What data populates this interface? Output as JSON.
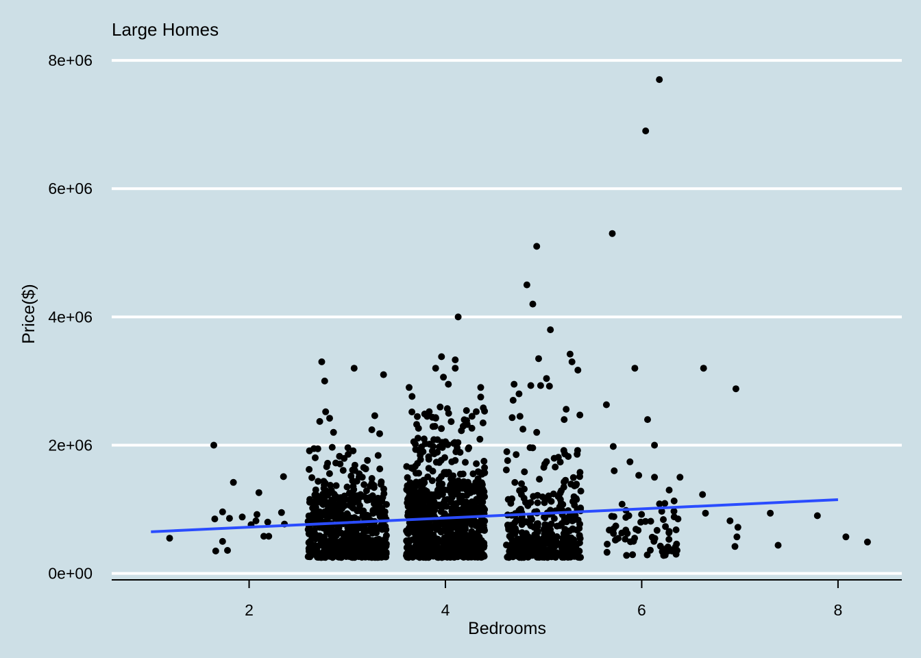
{
  "chart_data": {
    "type": "scatter",
    "title": "Large Homes",
    "xlabel": "Bedrooms",
    "ylabel": "Price($)",
    "xlim": [
      0.6,
      8.65
    ],
    "ylim": [
      -100000,
      8300000
    ],
    "x_ticks": [
      2,
      4,
      6,
      8
    ],
    "x_tick_labels": [
      "2",
      "4",
      "6",
      "8"
    ],
    "y_ticks": [
      0,
      2000000,
      4000000,
      6000000,
      8000000
    ],
    "y_tick_labels": [
      "0e+00",
      "2e+06",
      "4e+06",
      "6e+06",
      "8e+06"
    ],
    "grid": "horizontal major",
    "point_color": "#000000",
    "trend_line": {
      "x": [
        1.0,
        8.0
      ],
      "y": [
        650000,
        1150000
      ],
      "color": "#2a4cff"
    },
    "outliers": [
      [
        6.18,
        7700000
      ],
      [
        6.04,
        6900000
      ],
      [
        5.7,
        5300000
      ],
      [
        4.93,
        5100000
      ],
      [
        4.83,
        4500000
      ],
      [
        4.89,
        4200000
      ],
      [
        4.13,
        4000000
      ],
      [
        5.07,
        3800000
      ],
      [
        4.95,
        3350000
      ],
      [
        5.27,
        3420000
      ],
      [
        5.29,
        3300000
      ],
      [
        5.35,
        3170000
      ],
      [
        5.03,
        3040000
      ],
      [
        4.97,
        2930000
      ],
      [
        5.06,
        2920000
      ],
      [
        5.23,
        2560000
      ],
      [
        5.37,
        2470000
      ],
      [
        4.68,
        2430000
      ],
      [
        4.76,
        2450000
      ],
      [
        4.93,
        2200000
      ],
      [
        5.21,
        2400000
      ],
      [
        4.79,
        2250000
      ],
      [
        4.69,
        2700000
      ],
      [
        4.7,
        2950000
      ],
      [
        4.75,
        2800000
      ],
      [
        4.87,
        2930000
      ],
      [
        3.63,
        2900000
      ],
      [
        3.66,
        2760000
      ],
      [
        3.9,
        3200000
      ],
      [
        3.96,
        3380000
      ],
      [
        3.98,
        3060000
      ],
      [
        4.03,
        2950000
      ],
      [
        4.1,
        3330000
      ],
      [
        4.1,
        3200000
      ],
      [
        4.36,
        2900000
      ],
      [
        4.36,
        2750000
      ],
      [
        3.07,
        3200000
      ],
      [
        3.37,
        3100000
      ],
      [
        2.74,
        3300000
      ],
      [
        2.77,
        3000000
      ],
      [
        2.78,
        2520000
      ],
      [
        2.82,
        2420000
      ],
      [
        3.28,
        2460000
      ],
      [
        3.25,
        2240000
      ],
      [
        3.33,
        2180000
      ],
      [
        2.72,
        2370000
      ],
      [
        2.86,
        2200000
      ],
      [
        5.64,
        2630000
      ],
      [
        5.93,
        3200000
      ],
      [
        6.06,
        2400000
      ],
      [
        6.13,
        2000000
      ],
      [
        6.63,
        3200000
      ],
      [
        6.96,
        2880000
      ],
      [
        5.71,
        1980000
      ],
      [
        5.88,
        1740000
      ],
      [
        5.97,
        1530000
      ],
      [
        6.13,
        1500000
      ],
      [
        6.39,
        1500000
      ],
      [
        6.62,
        1230000
      ],
      [
        6.28,
        1300000
      ],
      [
        7.31,
        940000
      ],
      [
        7.79,
        900000
      ],
      [
        6.65,
        940000
      ],
      [
        6.9,
        820000
      ],
      [
        6.98,
        720000
      ],
      [
        6.97,
        570000
      ],
      [
        6.95,
        420000
      ],
      [
        7.39,
        440000
      ],
      [
        8.08,
        570000
      ],
      [
        8.3,
        490000
      ],
      [
        1.64,
        2000000
      ],
      [
        1.84,
        1420000
      ],
      [
        2.1,
        1260000
      ],
      [
        2.35,
        1510000
      ],
      [
        1.73,
        960000
      ],
      [
        1.65,
        850000
      ],
      [
        1.8,
        860000
      ],
      [
        1.93,
        880000
      ],
      [
        2.08,
        920000
      ],
      [
        2.33,
        950000
      ],
      [
        1.19,
        550000
      ],
      [
        1.66,
        350000
      ],
      [
        1.73,
        500000
      ],
      [
        1.78,
        360000
      ],
      [
        2.15,
        580000
      ],
      [
        2.2,
        580000
      ],
      [
        2.36,
        770000
      ],
      [
        2.07,
        820000
      ],
      [
        2.19,
        800000
      ],
      [
        2.02,
        760000
      ],
      [
        5.72,
        1600000
      ],
      [
        5.8,
        1080000
      ],
      [
        6.33,
        1130000
      ],
      [
        6.22,
        840000
      ],
      [
        6.37,
        850000
      ],
      [
        6.35,
        680000
      ],
      [
        6.36,
        360000
      ],
      [
        6.35,
        300000
      ],
      [
        6.24,
        380000
      ],
      [
        6.21,
        340000
      ]
    ],
    "clusters": [
      {
        "x": 3.0,
        "spread": 0.4,
        "y_min": 250000,
        "y_max": 1200000,
        "count": 520
      },
      {
        "x": 3.0,
        "spread": 0.4,
        "y_min": 1200000,
        "y_max": 2000000,
        "count": 70
      },
      {
        "x": 4.0,
        "spread": 0.4,
        "y_min": 250000,
        "y_max": 1400000,
        "count": 720
      },
      {
        "x": 4.0,
        "spread": 0.4,
        "y_min": 1400000,
        "y_max": 2600000,
        "count": 120
      },
      {
        "x": 5.0,
        "spread": 0.38,
        "y_min": 250000,
        "y_max": 1100000,
        "count": 300
      },
      {
        "x": 5.0,
        "spread": 0.38,
        "y_min": 1100000,
        "y_max": 2000000,
        "count": 60
      },
      {
        "x": 6.0,
        "spread": 0.36,
        "y_min": 280000,
        "y_max": 1100000,
        "count": 55
      }
    ]
  }
}
